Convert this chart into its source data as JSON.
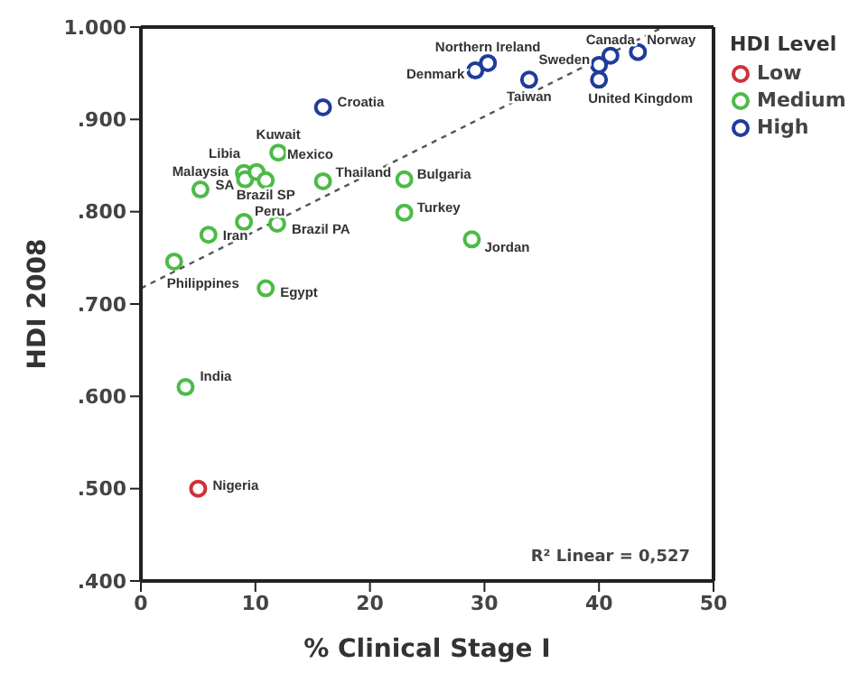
{
  "chart_data": {
    "type": "scatter",
    "xlabel": "% Clinical Stage I",
    "ylabel": "HDI 2008",
    "legend_title": "HDI Level",
    "legend": "right",
    "marker": "circle",
    "xlim": [
      0,
      50
    ],
    "xticks": [
      0,
      10,
      20,
      30,
      40,
      50
    ],
    "ylim": [
      0.4,
      1.0
    ],
    "yticks": [
      {
        "value": 0.4,
        "label": ".400"
      },
      {
        "value": 0.5,
        "label": ".500"
      },
      {
        "value": 0.6,
        "label": ".600"
      },
      {
        "value": 0.7,
        "label": ".700"
      },
      {
        "value": 0.8,
        "label": ".800"
      },
      {
        "value": 0.9,
        "label": ".900"
      },
      {
        "value": 1.0,
        "label": "1.000"
      }
    ],
    "series": [
      {
        "name": "Low",
        "color": "#d0313a",
        "x": [
          5.0
        ],
        "values": [
          0.5
        ]
      },
      {
        "name": "Medium",
        "color": "#4cbb47",
        "x": [
          3.9,
          2.9,
          5.9,
          5.2,
          9.0,
          9.0,
          9.1,
          10.1,
          10.9,
          11.9,
          10.9,
          12.0,
          15.9,
          23.0,
          23.0,
          28.9
        ],
        "values": [
          0.61,
          0.746,
          0.775,
          0.824,
          0.789,
          0.842,
          0.835,
          0.843,
          0.834,
          0.787,
          0.717,
          0.864,
          0.833,
          0.835,
          0.799,
          0.77
        ]
      },
      {
        "name": "High",
        "color": "#1f3c9a",
        "x": [
          15.9,
          29.2,
          30.3,
          33.9,
          40.0,
          40.0,
          41.0,
          43.4
        ],
        "values": [
          0.913,
          0.953,
          0.961,
          0.943,
          0.959,
          0.943,
          0.969,
          0.973
        ]
      },
      {
        "type": "line",
        "color": "#555555",
        "line_style": "dashed",
        "marker": "none",
        "x": [
          0,
          45.6
        ],
        "values": [
          0.717,
          1.0
        ]
      }
    ],
    "annotations": [
      {
        "text": "Nigeria",
        "x": 5.0,
        "y": 0.5
      },
      {
        "text": "India",
        "x": 3.9,
        "y": 0.61
      },
      {
        "text": "Philippines",
        "x": 2.9,
        "y": 0.746
      },
      {
        "text": "Iran",
        "x": 5.9,
        "y": 0.775
      },
      {
        "text": "Malaysia",
        "x": 5.2,
        "y": 0.824
      },
      {
        "text": "Peru",
        "x": 9.0,
        "y": 0.789
      },
      {
        "text": "Libia",
        "x": 9.0,
        "y": 0.842
      },
      {
        "text": "SA",
        "x": 9.1,
        "y": 0.835
      },
      {
        "text": "Mexico",
        "x": 10.1,
        "y": 0.843
      },
      {
        "text": "Brazil SP",
        "x": 10.9,
        "y": 0.834
      },
      {
        "text": "Brazil PA",
        "x": 11.9,
        "y": 0.787
      },
      {
        "text": "Egypt",
        "x": 10.9,
        "y": 0.717
      },
      {
        "text": "Kuwait",
        "x": 12.0,
        "y": 0.864
      },
      {
        "text": "Thailand",
        "x": 15.9,
        "y": 0.833
      },
      {
        "text": "Bulgaria",
        "x": 23.0,
        "y": 0.835
      },
      {
        "text": "Turkey",
        "x": 23.0,
        "y": 0.799
      },
      {
        "text": "Jordan",
        "x": 28.9,
        "y": 0.77
      },
      {
        "text": "Croatia",
        "x": 15.9,
        "y": 0.913
      },
      {
        "text": "Denmark",
        "x": 29.2,
        "y": 0.953
      },
      {
        "text": "Northern Ireland",
        "x": 30.3,
        "y": 0.961
      },
      {
        "text": "Taiwan",
        "x": 33.9,
        "y": 0.943
      },
      {
        "text": "Sweden",
        "x": 40.0,
        "y": 0.959
      },
      {
        "text": "United Kingdom",
        "x": 40.0,
        "y": 0.943
      },
      {
        "text": "Canada",
        "x": 41.0,
        "y": 0.969
      },
      {
        "text": "Norway",
        "x": 43.4,
        "y": 0.973
      },
      "R² Linear = 0,527"
    ]
  }
}
